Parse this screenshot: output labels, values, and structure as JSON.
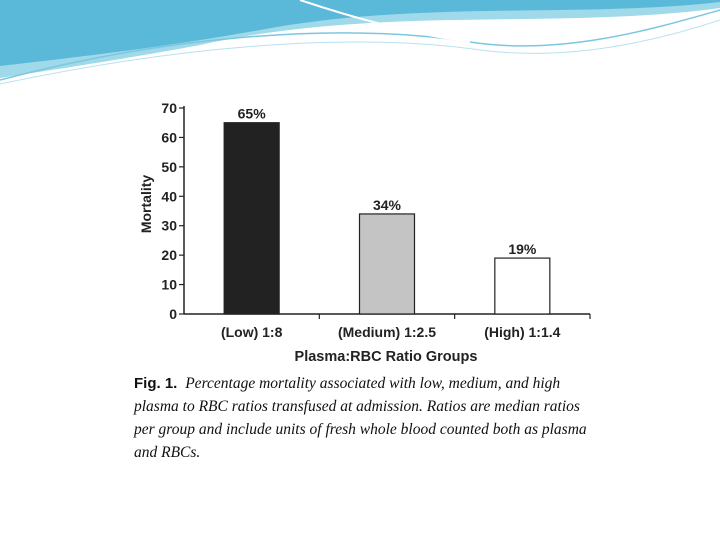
{
  "slide": {
    "accent_color": "#5ab8d8"
  },
  "chart_data": {
    "type": "bar",
    "categories": [
      "(Low) 1:8",
      "(Medium) 1:2.5",
      "(High) 1:1.4"
    ],
    "values": [
      65,
      34,
      19
    ],
    "data_labels": [
      "65%",
      "34%",
      "19%"
    ],
    "bar_colors": [
      "#222222",
      "#c4c4c4",
      "#ffffff"
    ],
    "title": "",
    "xlabel": "Plasma:RBC Ratio Groups",
    "ylabel": "Mortality",
    "ylim": [
      0,
      70
    ],
    "yticks": [
      "0",
      "10",
      "20",
      "30",
      "40",
      "50",
      "60",
      "70"
    ],
    "grid": false,
    "legend": "none"
  },
  "caption": {
    "label": "Fig. 1.",
    "text": "Percentage mortality associated with low, medium, and high plasma to RBC ratios transfused at admission. Ratios are median ratios per group and include units of fresh whole blood counted both as plasma and RBCs."
  }
}
